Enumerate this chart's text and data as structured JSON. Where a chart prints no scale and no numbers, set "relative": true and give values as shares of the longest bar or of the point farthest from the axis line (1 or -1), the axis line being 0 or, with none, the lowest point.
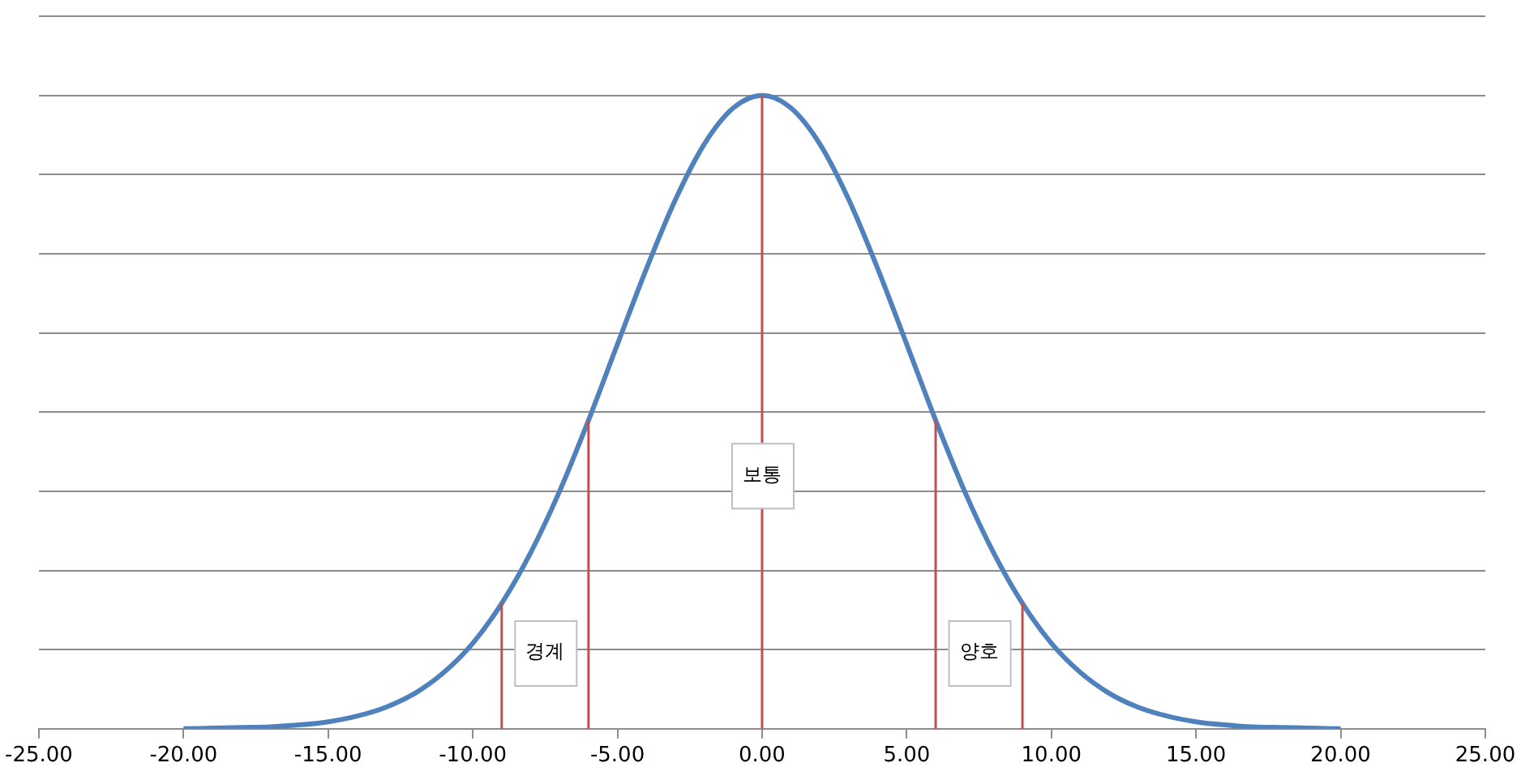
{
  "chart_data": {
    "type": "line",
    "relative": true,
    "grid": "y",
    "marker": "none",
    "line_style": "solid",
    "legend": false,
    "x": [
      -20,
      -19,
      -18,
      -17,
      -16,
      -15,
      -14,
      -13,
      -12,
      -11,
      -10,
      -9,
      -8,
      -7,
      -6,
      -5,
      -4,
      -3,
      -2,
      -1,
      0,
      1,
      2,
      3,
      4,
      5,
      6,
      7,
      8,
      9,
      10,
      11,
      12,
      13,
      14,
      15,
      16,
      17,
      18,
      19,
      20
    ],
    "series": [
      {
        "color": "#4f81bd",
        "values": [
          0.0,
          0.001,
          0.002,
          0.003,
          0.006,
          0.011,
          0.02,
          0.034,
          0.056,
          0.089,
          0.135,
          0.198,
          0.278,
          0.375,
          0.487,
          0.607,
          0.726,
          0.835,
          0.923,
          0.98,
          1,
          0.98,
          0.923,
          0.835,
          0.726,
          0.607,
          0.487,
          0.375,
          0.278,
          0.198,
          0.135,
          0.089,
          0.056,
          0.034,
          0.02,
          0.011,
          0.006,
          0.003,
          0.002,
          0.001,
          0.0
        ]
      }
    ],
    "xlim": [
      -25,
      25
    ],
    "xticks": [
      {
        "value": -25,
        "label": "-25.00"
      },
      {
        "value": -20,
        "label": "-20.00"
      },
      {
        "value": -15,
        "label": "-15.00"
      },
      {
        "value": -10,
        "label": "-10.00"
      },
      {
        "value": -5,
        "label": "-5.00"
      },
      {
        "value": 0,
        "label": "0.00"
      },
      {
        "value": 5,
        "label": "5.00"
      },
      {
        "value": 10,
        "label": "10.00"
      },
      {
        "value": 15,
        "label": "15.00"
      },
      {
        "value": 20,
        "label": "20.00"
      },
      {
        "value": 25,
        "label": "25.00"
      }
    ],
    "ref_lines": [
      {
        "axis": "x",
        "value": -9,
        "color": "#c0504d"
      },
      {
        "axis": "x",
        "value": -6,
        "color": "#c0504d"
      },
      {
        "axis": "x",
        "value": 0,
        "color": "#c0504d"
      },
      {
        "axis": "x",
        "value": 6,
        "color": "#c0504d"
      },
      {
        "axis": "x",
        "value": 9,
        "color": "#c0504d"
      }
    ],
    "annotations": [
      {
        "text": "경계",
        "x": -7.5,
        "y": 0.12
      },
      {
        "text": "보통",
        "x": 0,
        "y": 0.4
      },
      {
        "text": "양호",
        "x": 7.5,
        "y": 0.12
      }
    ]
  }
}
